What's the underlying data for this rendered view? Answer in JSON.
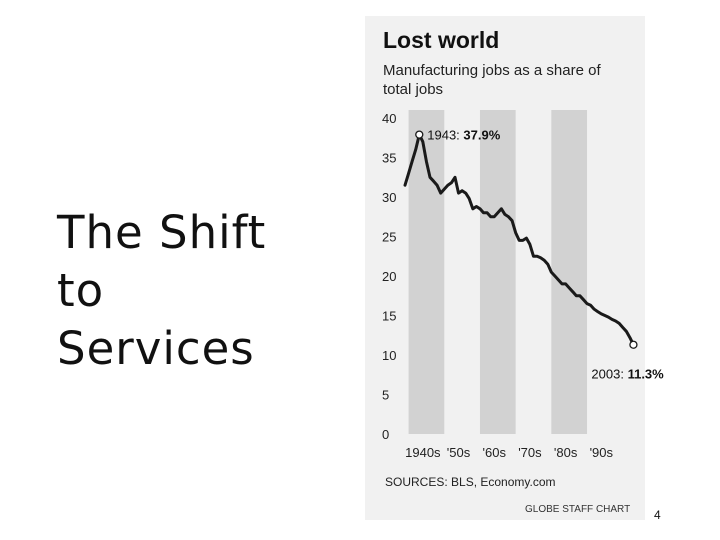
{
  "slide": {
    "title_lines": [
      "The Shift",
      "to",
      "Services"
    ],
    "page_number": "4"
  },
  "chart_data": {
    "type": "line",
    "title": "Lost world",
    "subtitle_lines": [
      "Manufacturing jobs as a share of",
      "total jobs"
    ],
    "ylim": [
      0,
      40
    ],
    "y_ticks": [
      0,
      5,
      10,
      15,
      20,
      25,
      30,
      35,
      40
    ],
    "xlim": [
      1939,
      2004
    ],
    "x_tick_labels": [
      "1940s",
      "'50s",
      "'60s",
      "'70s",
      "'80s",
      "'90s"
    ],
    "x_tick_positions": [
      1944,
      1954,
      1964,
      1974,
      1984,
      1994
    ],
    "shaded_decades": [
      [
        1940,
        1950
      ],
      [
        1960,
        1970
      ],
      [
        1980,
        1990
      ]
    ],
    "series": [
      {
        "x": [
          1939,
          1940,
          1941,
          1942,
          1943,
          1944,
          1945,
          1946,
          1947,
          1948,
          1949,
          1950,
          1951,
          1952,
          1953,
          1954,
          1955,
          1956,
          1957,
          1958,
          1959,
          1960,
          1961,
          1962,
          1963,
          1964,
          1965,
          1966,
          1967,
          1968,
          1969,
          1970,
          1971,
          1972,
          1973,
          1974,
          1975,
          1976,
          1977,
          1978,
          1979,
          1980,
          1981,
          1982,
          1983,
          1984,
          1985,
          1986,
          1987,
          1988,
          1989,
          1990,
          1991,
          1992,
          1993,
          1994,
          1995,
          1996,
          1997,
          1998,
          1999,
          2000,
          2001,
          2002,
          2003
        ],
        "y": [
          31.5,
          33.0,
          34.5,
          36.0,
          37.9,
          37.0,
          34.5,
          32.5,
          32.0,
          31.5,
          30.5,
          31.0,
          31.5,
          31.8,
          32.5,
          30.5,
          30.8,
          30.5,
          29.8,
          28.5,
          28.8,
          28.5,
          28.0,
          28.0,
          27.5,
          27.5,
          28.0,
          28.5,
          27.8,
          27.5,
          27.0,
          25.5,
          24.5,
          24.5,
          24.8,
          24.0,
          22.5,
          22.5,
          22.3,
          22.0,
          21.5,
          20.5,
          20.0,
          19.5,
          19.0,
          19.0,
          18.5,
          18.0,
          17.5,
          17.5,
          17.0,
          16.5,
          16.3,
          15.8,
          15.5,
          15.2,
          15.0,
          14.8,
          14.5,
          14.3,
          14.0,
          13.5,
          13.0,
          12.2,
          11.3
        ]
      }
    ],
    "annotations": [
      {
        "x": 1943,
        "y": 37.9,
        "label": "1943: ",
        "value": "37.9%"
      },
      {
        "x": 2003,
        "y": 11.3,
        "label": "2003: ",
        "value": "11.3%"
      }
    ],
    "source": "SOURCES: BLS, Economy.com",
    "credit": "GLOBE STAFF CHART",
    "colors": {
      "line": "#1a1a1a",
      "shade": "#d2d2d2",
      "panel": "#f1f1f1"
    }
  }
}
